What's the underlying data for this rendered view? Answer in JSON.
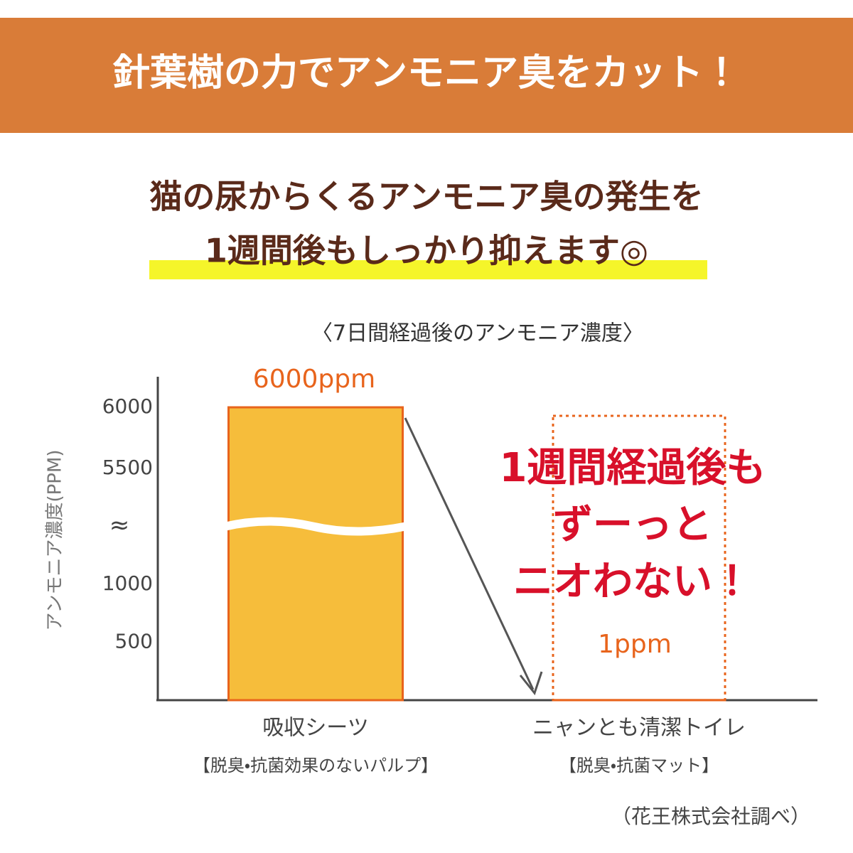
{
  "chart_data": {
    "type": "bar",
    "header": "針葉樹の力でアンモニア臭をカット！",
    "subtitle": [
      "猫の尿からくるアンモニア臭の発生を",
      "1週間後もしっかり抑えます◎"
    ],
    "title": "〈7日間経過後のアンモニア濃度〉",
    "y_label": "アンモニア濃度(PPM)",
    "categories": [
      "吸収シーツ",
      "ニャンとも清潔トイレ"
    ],
    "category_notes": [
      "【脱臭・抗菌効果のないパルプ】",
      "【脱臭・抗菌マット】"
    ],
    "values": [
      6000,
      1
    ],
    "value_labels": [
      "6000ppm",
      "1ppm"
    ],
    "color": "#f6bd3b",
    "ylim": [
      0,
      6000
    ],
    "yticks": [
      500,
      1000,
      5500,
      6000
    ],
    "axis_break": {
      "range": [
        1000,
        5500
      ],
      "label": "≈"
    },
    "grid": false,
    "annotation": [
      "1週間経過後も",
      "ずーっと",
      "ニオわない！"
    ],
    "source": "（花王株式会社調べ）"
  }
}
